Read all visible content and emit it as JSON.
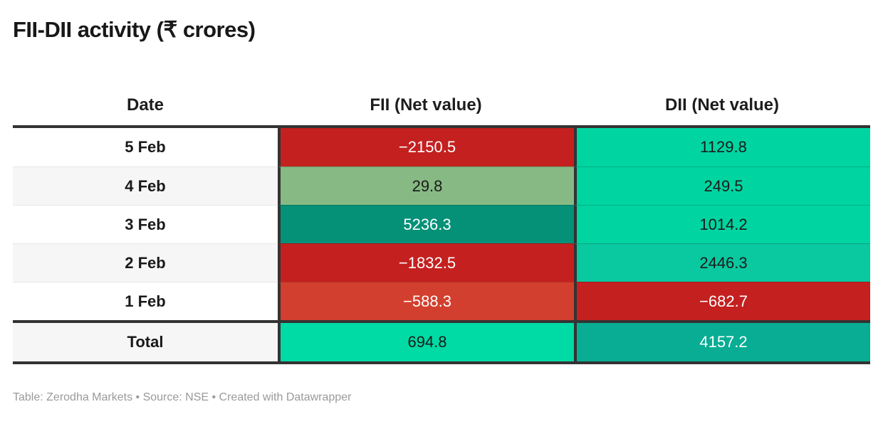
{
  "title": "FII-DII activity (₹ crores)",
  "footer": "Table: Zerodha Markets • Source: NSE • Created with Datawrapper",
  "colors": {
    "header_border": "#333333",
    "row_stripe": "#f6f6f6",
    "negative_red": "#c42020",
    "positive_green": "#00d5a1"
  },
  "table": {
    "columns": [
      "Date",
      "FII (Net value)",
      "DII (Net value)"
    ],
    "rows": [
      {
        "date": "5 Feb",
        "fii": {
          "text": "−2150.5",
          "bg": "#c42020",
          "fg": "#ffffff"
        },
        "dii": {
          "text": "1129.8",
          "bg": "#00d5a1",
          "fg": "#1a1a1a"
        }
      },
      {
        "date": "4 Feb",
        "fii": {
          "text": "29.8",
          "bg": "#86b983",
          "fg": "#1a1a1a"
        },
        "dii": {
          "text": "249.5",
          "bg": "#00d5a1",
          "fg": "#1a1a1a"
        }
      },
      {
        "date": "3 Feb",
        "fii": {
          "text": "5236.3",
          "bg": "#049178",
          "fg": "#ffffff"
        },
        "dii": {
          "text": "1014.2",
          "bg": "#00d5a1",
          "fg": "#1a1a1a"
        }
      },
      {
        "date": "2 Feb",
        "fii": {
          "text": "−1832.5",
          "bg": "#c42020",
          "fg": "#ffffff"
        },
        "dii": {
          "text": "2446.3",
          "bg": "#0ac8a0",
          "fg": "#1a1a1a"
        }
      },
      {
        "date": "1 Feb",
        "fii": {
          "text": "−588.3",
          "bg": "#d23f2e",
          "fg": "#ffffff"
        },
        "dii": {
          "text": "−682.7",
          "bg": "#c42020",
          "fg": "#ffffff"
        }
      }
    ],
    "total": {
      "date": "Total",
      "fii": {
        "text": "694.8",
        "bg": "#00daa4",
        "fg": "#1a1a1a"
      },
      "dii": {
        "text": "4157.2",
        "bg": "#08ad93",
        "fg": "#ffffff"
      }
    }
  },
  "chart_data": {
    "type": "table",
    "title": "FII-DII activity (₹ crores)",
    "categories": [
      "5 Feb",
      "4 Feb",
      "3 Feb",
      "2 Feb",
      "1 Feb"
    ],
    "series": [
      {
        "name": "FII (Net value)",
        "values": [
          -2150.5,
          29.8,
          5236.3,
          -1832.5,
          -588.3
        ],
        "total": 694.8
      },
      {
        "name": "DII (Net value)",
        "values": [
          1129.8,
          249.5,
          1014.2,
          2446.3,
          -682.7
        ],
        "total": 4157.2
      }
    ],
    "layout_hints": "heatmap-colored cells: shades of red for negative values, shades of green/teal for positive values; striped date column; totals row at bottom"
  }
}
